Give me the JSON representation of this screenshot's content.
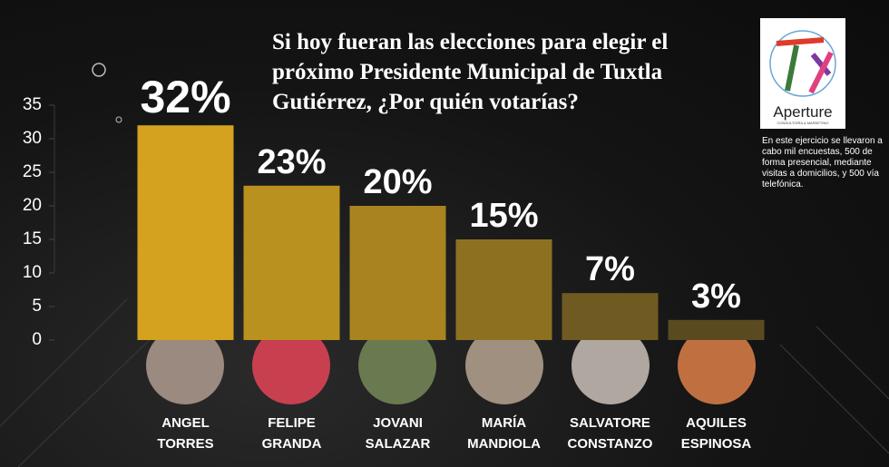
{
  "chart_data": {
    "type": "bar",
    "title": "Si hoy fueran las elecciones para elegir el próximo Presidente Municipal de Tuxtla Gutiérrez, ¿Por quién votarías?",
    "categories": [
      "ANGEL TORRES",
      "FELIPE GRANDA",
      "JOVANI SALAZAR",
      "MARÍA MANDIOLA",
      "SALVATORE CONSTANZO",
      "AQUILES ESPINOSA"
    ],
    "values": [
      32,
      23,
      20,
      15,
      7,
      3
    ],
    "value_labels": [
      "32%",
      "23%",
      "20%",
      "15%",
      "7%",
      "3%"
    ],
    "colors": [
      "#d4a21e",
      "#b9911f",
      "#a8831f",
      "#8e7120",
      "#6f5a21",
      "#5a4a1f"
    ],
    "ylim": [
      0,
      35
    ],
    "yticks": [
      0,
      5,
      10,
      15,
      20,
      25,
      30,
      35
    ],
    "note": "En este ejercicio se llevaron a cabo mil encuestas, 500 de forma presencial, mediante visitas a domicilios, y 500  vía telefónica.",
    "logo": {
      "name": "Aperture",
      "subtitle": "CONSULTORÍA & MARKETING"
    }
  }
}
